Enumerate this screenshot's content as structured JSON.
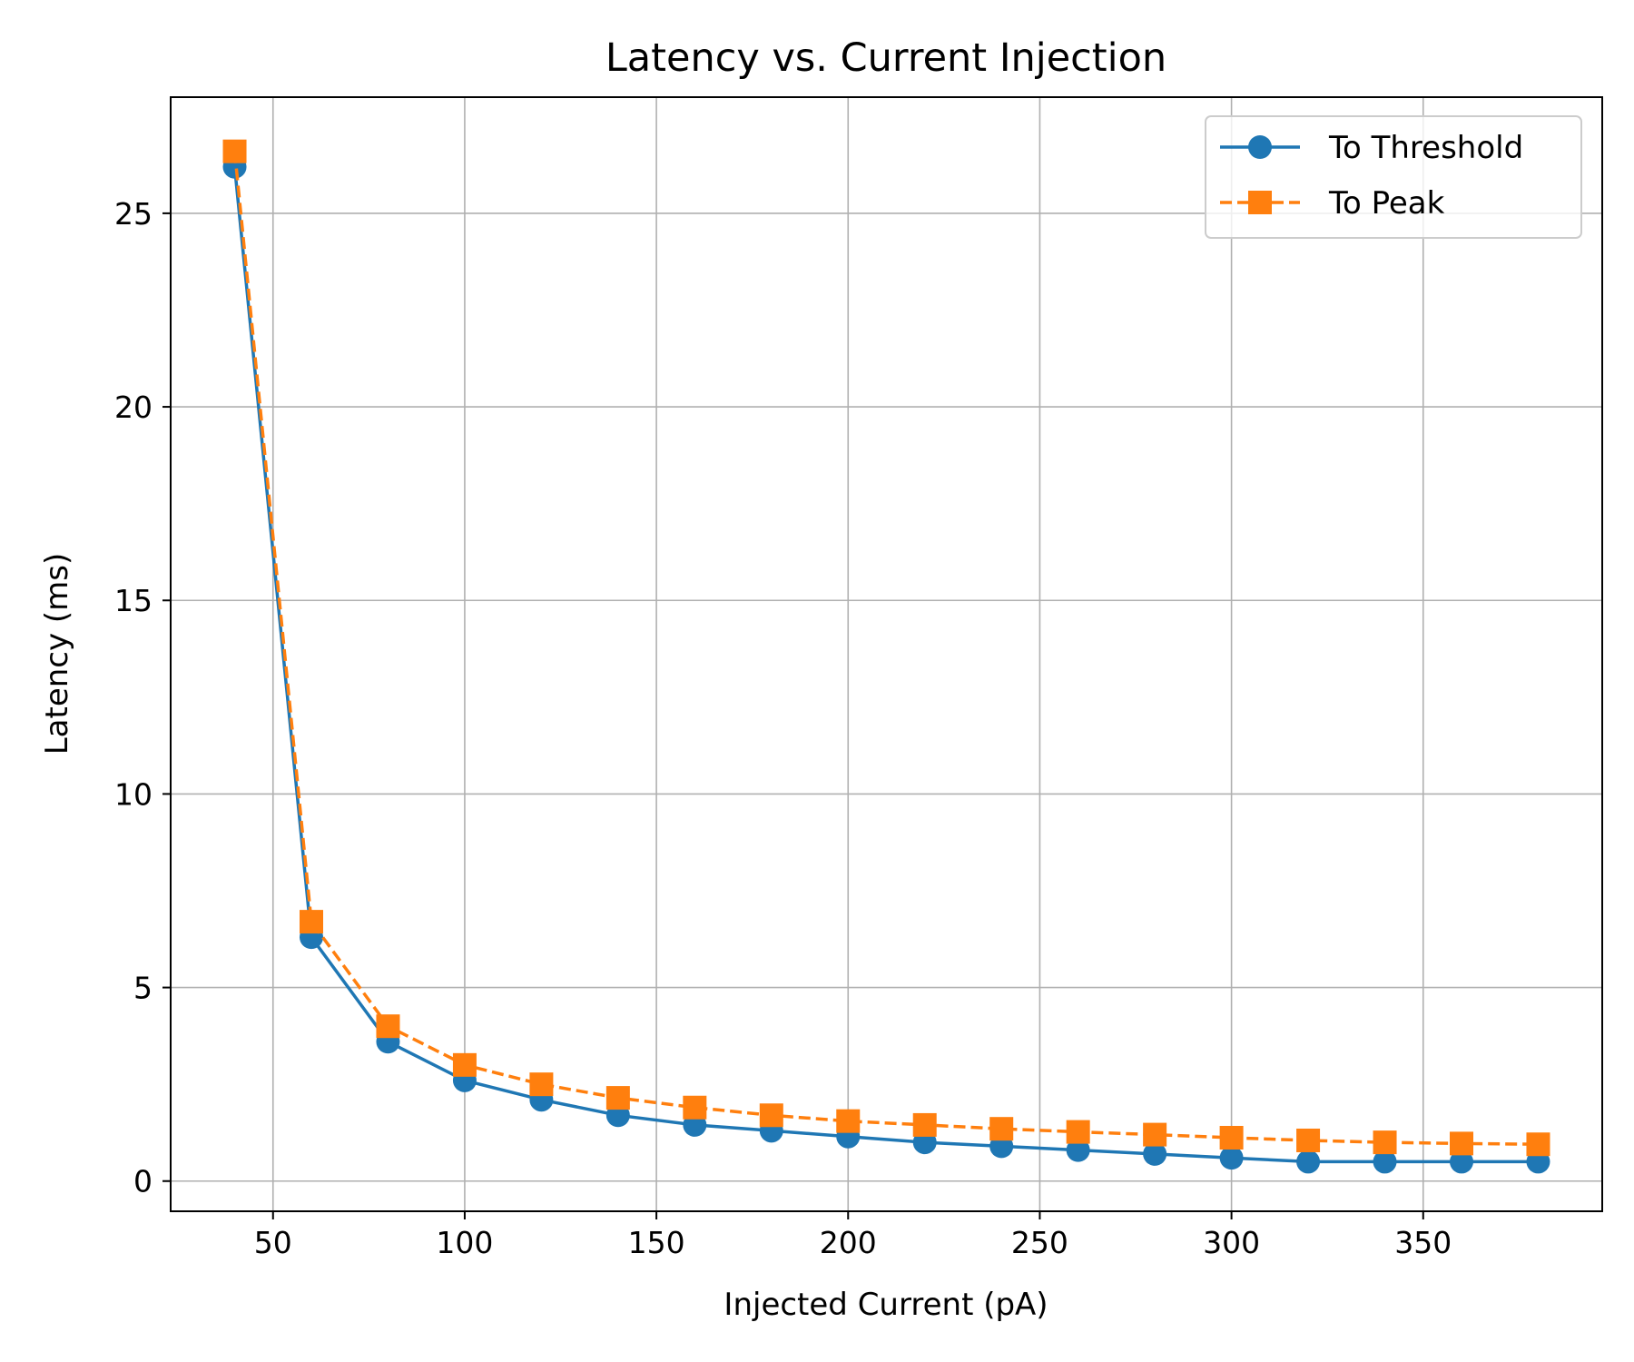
{
  "chart_data": {
    "type": "line",
    "title": "Latency vs. Current Injection",
    "xlabel": "Injected Current (pA)",
    "ylabel": "Latency (ms)",
    "xlim": [
      23.3,
      396.7
    ],
    "ylim": [
      -0.78,
      28.0
    ],
    "xticks": [
      50,
      100,
      150,
      200,
      250,
      300,
      350
    ],
    "yticks": [
      0,
      5,
      10,
      15,
      20,
      25
    ],
    "grid": true,
    "legend": {
      "position": "top-right",
      "labels": [
        "To Threshold",
        "To Peak"
      ]
    },
    "x": [
      40,
      60,
      80,
      100,
      120,
      140,
      160,
      180,
      200,
      220,
      240,
      260,
      280,
      300,
      320,
      340,
      360,
      380
    ],
    "series": [
      {
        "name": "To Threshold",
        "color": "#1f77b4",
        "marker": "circle",
        "linestyle": "solid",
        "values": [
          26.2,
          6.3,
          3.6,
          2.6,
          2.1,
          1.7,
          1.45,
          1.3,
          1.15,
          1.0,
          0.9,
          0.8,
          0.7,
          0.6,
          0.5,
          0.5,
          0.5,
          0.5
        ]
      },
      {
        "name": "To Peak",
        "color": "#ff7f0e",
        "marker": "square",
        "linestyle": "dashed",
        "values": [
          26.6,
          6.7,
          4.0,
          3.0,
          2.5,
          2.15,
          1.9,
          1.7,
          1.55,
          1.45,
          1.35,
          1.27,
          1.2,
          1.12,
          1.05,
          1.0,
          0.97,
          0.95
        ]
      }
    ]
  }
}
